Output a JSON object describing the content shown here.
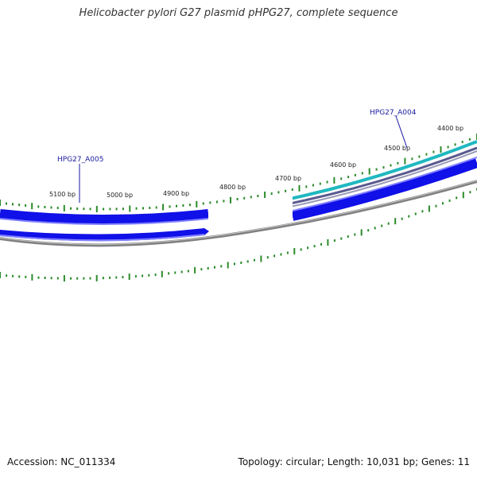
{
  "title": "Helicobacter pylori G27 plasmid pHPG27, complete sequence",
  "footer": {
    "accession": "Accession: NC_011334",
    "summary": "Topology: circular; Length: 10,031 bp; Genes: 11"
  },
  "colors": {
    "gene_blue": "#1010e8",
    "gene_light_blue": "#8080ff",
    "cyan_feature": "#20b8c0",
    "slate_feature": "#5a5a90",
    "backbone_gray": "#808080",
    "tick_green": "#2a8a2a",
    "label_blue": "#1a1aa0"
  },
  "ticks": [
    {
      "label": "5100 bp"
    },
    {
      "label": "5000 bp"
    },
    {
      "label": "4900 bp"
    },
    {
      "label": "4800 bp"
    },
    {
      "label": "4700 bp"
    },
    {
      "label": "4600 bp"
    },
    {
      "label": "4500 bp"
    },
    {
      "label": "4400 bp"
    }
  ],
  "gene_labels": [
    {
      "name": "HPG27_A005"
    },
    {
      "name": "HPG27_A004"
    }
  ]
}
